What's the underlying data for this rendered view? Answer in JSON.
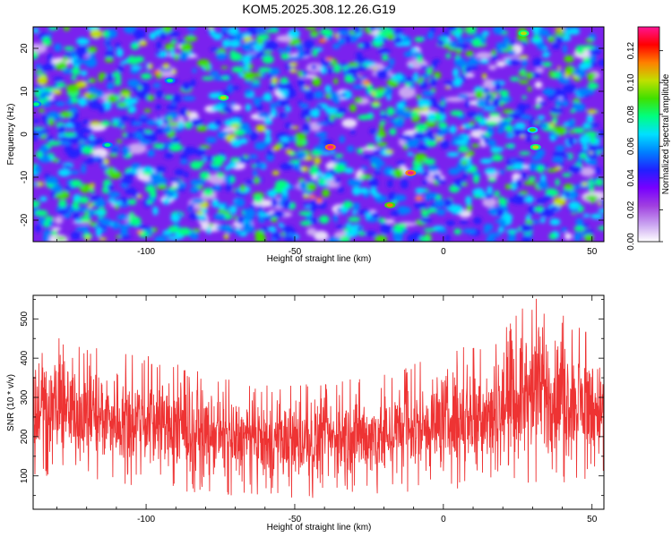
{
  "chart_data": [
    {
      "type": "heatmap",
      "title": "KOM5.2025.308.12.26.G19",
      "xlabel": "Height of straight line (km)",
      "ylabel": "Frequency (Hz)",
      "xlim": [
        -138,
        54
      ],
      "ylim": [
        -25,
        25
      ],
      "xticks": [
        -100,
        -50,
        0,
        50
      ],
      "yticks": [
        -20,
        -10,
        0,
        10,
        20
      ],
      "colorbar": {
        "label": "Normalized spectral amplitude",
        "range": [
          0,
          0.135
        ],
        "ticks": [
          0.0,
          0.02,
          0.04,
          0.06,
          0.08,
          0.1,
          0.12
        ],
        "tick_labels": [
          "0.00",
          "0.02",
          "0.04",
          "0.06",
          "0.08",
          "0.10",
          "0.12"
        ],
        "colors": [
          "#ffffff",
          "#c8a0f0",
          "#a040e0",
          "#7800ff",
          "#2020ff",
          "#0080ff",
          "#00e0ff",
          "#00ff80",
          "#40e000",
          "#c0e000",
          "#ff8000",
          "#ff0000",
          "#ff1493"
        ]
      },
      "hotspots": [
        {
          "x": -38,
          "y": -3,
          "v": 0.13
        },
        {
          "x": -11,
          "y": -9,
          "v": 0.13
        },
        {
          "x": -18,
          "y": -16.5,
          "v": 0.11
        },
        {
          "x": 27,
          "y": 23.5,
          "v": 0.1
        },
        {
          "x": -74,
          "y": 8.5,
          "v": 0.1
        },
        {
          "x": 31,
          "y": -3,
          "v": 0.1
        },
        {
          "x": 30,
          "y": 1,
          "v": 0.09
        },
        {
          "x": -113,
          "y": -2.5,
          "v": 0.08
        },
        {
          "x": -137,
          "y": 7,
          "v": 0.08
        },
        {
          "x": -92,
          "y": 12.5,
          "v": 0.08
        }
      ]
    },
    {
      "type": "line",
      "xlabel": "Height of straight line (km)",
      "ylabel": "SNR (10 * v/v)",
      "xlim": [
        -138,
        54
      ],
      "ylim": [
        15,
        560
      ],
      "xticks": [
        -100,
        -50,
        0,
        50
      ],
      "yticks": [
        100,
        200,
        300,
        400,
        500
      ],
      "series": [
        {
          "name": "SNR",
          "color": "#ee3333",
          "envelope_x": [
            -138,
            -120,
            -100,
            -80,
            -60,
            -40,
            -20,
            0,
            20,
            30,
            40,
            54
          ],
          "envelope_min": [
            80,
            90,
            70,
            55,
            40,
            45,
            50,
            60,
            70,
            80,
            75,
            90
          ],
          "envelope_max": [
            480,
            430,
            410,
            360,
            330,
            340,
            360,
            420,
            470,
            560,
            520,
            450
          ]
        }
      ]
    }
  ]
}
